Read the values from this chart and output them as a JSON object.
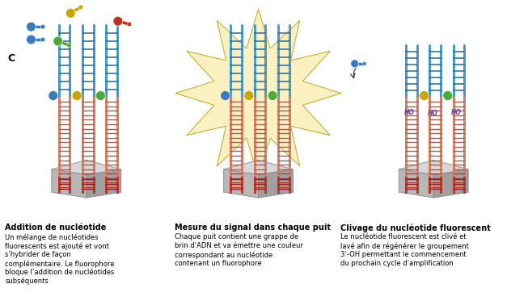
{
  "background_color": "#ffffff",
  "label_c": "C",
  "section1_title": "Addition de nucléotide",
  "section1_body": "Un mélange de nucléotides\nfluorescents est ajouté et vont\ns’hybrider de façon\ncomplémentaire. Le fluorophore\nbloque l’addition de nucléotides\nsubséquents",
  "section2_title": "Mesure du signal dans chaque puit",
  "section2_body": "Chaque puit contient une grappe de\nbrin d’ADN et va émettre une couleur\ncorrespondant au nucléotide\ncontenant un fluorophore",
  "section3_title": "Clivage du nucléotide fluorescent",
  "section3_body": "Le nucléotide fluorescent est clivé et\nlavé afin de régénérer le groupement\n3’-OH permettant le commencement\ndu prochain cycle d’amplification",
  "fig_width": 6.53,
  "fig_height": 3.78,
  "dpi": 100,
  "text_color": "#000000",
  "title_fontsize": 7.0,
  "body_fontsize": 6.0,
  "label_fontsize": 9,
  "dna_blue": "#4a9bc8",
  "dna_red": "#c0392b",
  "dna_salmon": "#d4826a",
  "dna_dark": "#333333",
  "rung_blue": "#2a6a98",
  "rung_dark": "#444444",
  "fluoro_blue": "#3a7abf",
  "fluoro_green": "#4aaa3a",
  "fluoro_yellow": "#c8a800",
  "fluoro_red": "#c03020",
  "burst_color": "#faf0c0",
  "burst_edge": "#c0a820",
  "platform_top": "#d8d8d8",
  "platform_left": "#b8b8b8",
  "platform_right": "#a0a0a0",
  "platform_edge": "#888888",
  "ho_color": "#7040a0"
}
